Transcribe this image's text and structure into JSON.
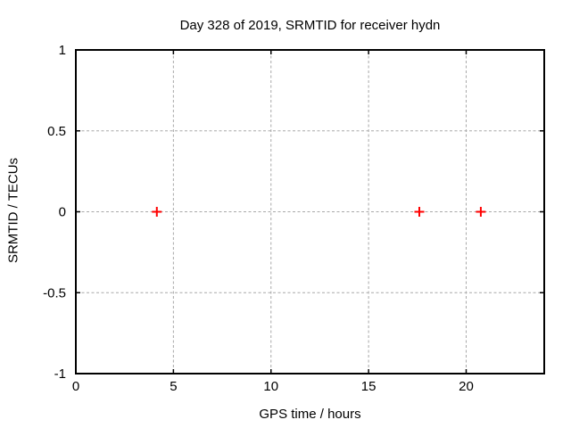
{
  "chart_data": {
    "type": "scatter",
    "title": "Day 328 of 2019, SRMTID for receiver hydn",
    "xlabel": "GPS time / hours",
    "ylabel": "SRMTID / TECUs",
    "xlim": [
      0,
      24
    ],
    "ylim": [
      -1,
      1
    ],
    "x_ticks": [
      0,
      5,
      10,
      15,
      20
    ],
    "x_tick_labels": [
      "0",
      "5",
      "10",
      "15",
      "20"
    ],
    "y_ticks": [
      -1,
      -0.5,
      0,
      0.5,
      1
    ],
    "y_tick_labels": [
      "-1",
      "-0.5",
      "0",
      "0.5",
      "1"
    ],
    "grid": true,
    "legend": "none",
    "series": [
      {
        "name": "SRMTID",
        "marker": "plus",
        "color": "#ff0000",
        "points": [
          {
            "x": 4.15,
            "y": 0
          },
          {
            "x": 17.6,
            "y": 0
          },
          {
            "x": 20.75,
            "y": 0
          }
        ]
      }
    ],
    "colors": {
      "background": "#ffffff",
      "border": "#000000",
      "grid": "#a8a8a8",
      "tick": "#000000",
      "text": "#000000"
    }
  }
}
